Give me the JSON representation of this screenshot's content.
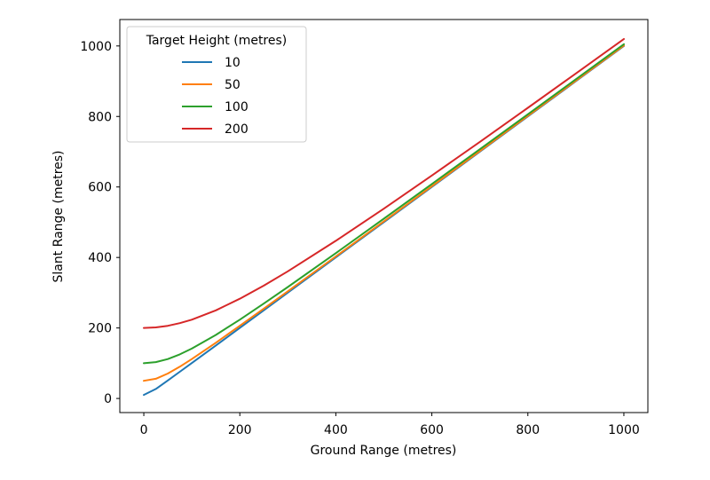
{
  "chart_data": {
    "type": "line",
    "title": "",
    "xlabel": "Ground Range (metres)",
    "ylabel": "Slant Range (metres)",
    "xlim": [
      -50,
      1050
    ],
    "ylim": [
      -40,
      1075
    ],
    "xticks": [
      0,
      200,
      400,
      600,
      800,
      1000
    ],
    "yticks": [
      0,
      200,
      400,
      600,
      800,
      1000
    ],
    "grid": false,
    "legend": {
      "title": "Target Height (metres)",
      "placement": "top-left"
    },
    "x": [
      0,
      25,
      50,
      75,
      100,
      150,
      200,
      250,
      300,
      400,
      500,
      600,
      700,
      800,
      900,
      1000
    ],
    "series": [
      {
        "name": "10",
        "color": "#1f77b4",
        "values": [
          10,
          26.9,
          51.0,
          75.7,
          100.5,
          150.3,
          200.2,
          250.2,
          300.2,
          400.1,
          500.1,
          600.1,
          700.1,
          800.1,
          900.1,
          1000.0
        ]
      },
      {
        "name": "50",
        "color": "#ff7f0e",
        "values": [
          50,
          55.9,
          70.7,
          90.1,
          111.8,
          158.1,
          206.2,
          255.0,
          304.1,
          403.1,
          502.5,
          602.1,
          701.8,
          801.6,
          901.4,
          1001.2
        ]
      },
      {
        "name": "100",
        "color": "#2ca02c",
        "values": [
          100,
          103.1,
          111.8,
          125.0,
          141.4,
          180.3,
          223.6,
          269.3,
          316.2,
          412.3,
          509.9,
          608.3,
          707.1,
          806.2,
          905.5,
          1005.0
        ]
      },
      {
        "name": "200",
        "color": "#d62728",
        "values": [
          200,
          201.6,
          206.2,
          213.6,
          223.6,
          250.0,
          282.8,
          320.2,
          360.6,
          447.2,
          538.5,
          632.5,
          728.0,
          824.6,
          922.0,
          1019.8
        ]
      }
    ]
  }
}
